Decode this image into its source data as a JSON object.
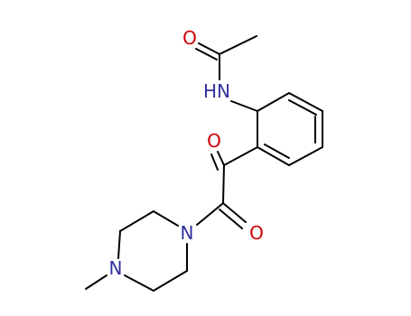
{
  "molecule": {
    "atoms": [
      {
        "label": "O",
        "color": "#d00000"
      },
      {
        "label": "HN",
        "color": "#3030a0"
      },
      {
        "label": "O",
        "color": "#d00000"
      },
      {
        "label": "O",
        "color": "#d00000"
      },
      {
        "label": "N",
        "color": "#3030a0"
      },
      {
        "label": "N",
        "color": "#3030a0"
      }
    ]
  }
}
